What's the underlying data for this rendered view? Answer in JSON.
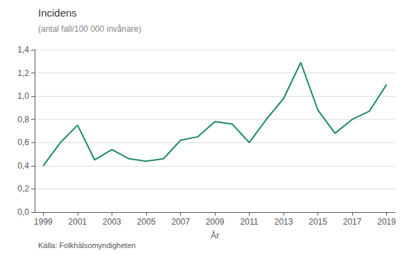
{
  "chart_data": {
    "type": "line",
    "title": "Incidens",
    "subtitle": "(antal fall/100 000 invånare)",
    "xlabel": "År",
    "source": "Källa: Folkhälsomyndigheten",
    "x": [
      1999,
      2000,
      2001,
      2002,
      2003,
      2004,
      2005,
      2006,
      2007,
      2008,
      2009,
      2010,
      2011,
      2012,
      2013,
      2014,
      2015,
      2016,
      2017,
      2018,
      2019
    ],
    "values": [
      0.4,
      0.6,
      0.75,
      0.45,
      0.54,
      0.46,
      0.44,
      0.46,
      0.62,
      0.65,
      0.78,
      0.76,
      0.6,
      0.8,
      0.98,
      1.29,
      0.88,
      0.68,
      0.8,
      0.87,
      1.1
    ],
    "color": "#1a8a5a",
    "xlim": [
      1998.5,
      2019.5
    ],
    "xticks": [
      1999,
      2001,
      2003,
      2005,
      2007,
      2009,
      2011,
      2013,
      2015,
      2017,
      2019
    ],
    "ylim": [
      0.0,
      1.4
    ],
    "yticks": [
      {
        "value": 0.0,
        "label": "0,0"
      },
      {
        "value": 0.2,
        "label": "0,2"
      },
      {
        "value": 0.4,
        "label": "0,4"
      },
      {
        "value": 0.6,
        "label": "0,6"
      },
      {
        "value": 0.8,
        "label": "0,8"
      },
      {
        "value": 1.0,
        "label": "1,0"
      },
      {
        "value": 1.2,
        "label": "1,2"
      },
      {
        "value": 1.4,
        "label": "1,4"
      }
    ],
    "grid": true
  }
}
